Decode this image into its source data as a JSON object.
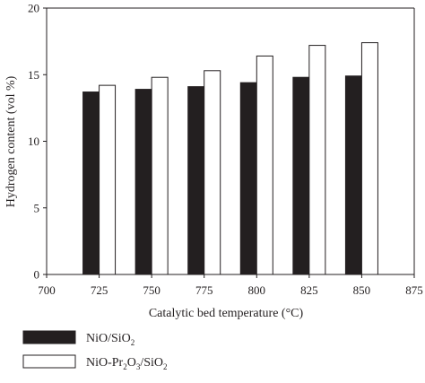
{
  "chart_data": {
    "type": "bar",
    "title": "",
    "xlabel": "Catalytic bed temperature (°C)",
    "ylabel": "Hydrogen content (vol %)",
    "xlim": [
      700,
      875
    ],
    "ylim": [
      0,
      20
    ],
    "xticks": [
      "700",
      "725",
      "750",
      "775",
      "800",
      "825",
      "850",
      "875"
    ],
    "yticks": [
      "0",
      "5",
      "10",
      "15",
      "20"
    ],
    "categories": [
      725,
      750,
      775,
      800,
      825,
      850
    ],
    "series": [
      {
        "name": "NiO/SiO2",
        "name_parts": [
          "NiO/SiO",
          "2"
        ],
        "fill": "#231f20",
        "values": [
          13.7,
          13.9,
          14.1,
          14.4,
          14.8,
          14.9
        ]
      },
      {
        "name": "NiO-Pr2O3/SiO2",
        "name_parts": [
          "NiO-Pr",
          "2",
          "O",
          "3",
          "/SiO",
          "2"
        ],
        "fill": "#ffffff",
        "values": [
          14.2,
          14.8,
          15.3,
          16.4,
          17.2,
          17.4
        ]
      }
    ],
    "grid": false,
    "legend_position": "bottom-left"
  }
}
